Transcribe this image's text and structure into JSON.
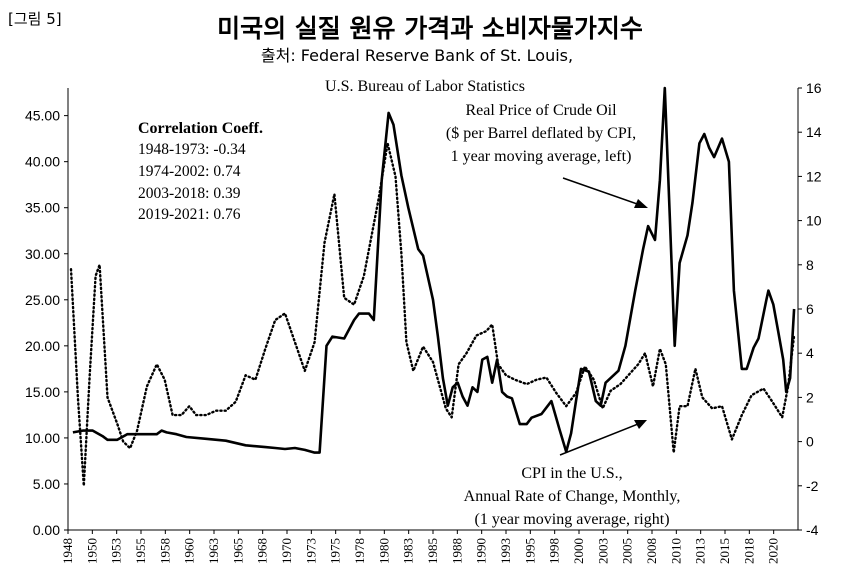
{
  "figure_label": "[그림 5]",
  "chart_data": {
    "type": "line",
    "title": "미국의 실질 원유 가격과 소비자물가지수",
    "source_lines": [
      "출처: Federal Reserve Bank of St. Louis,",
      "U.S. Bureau of Labor Statistics"
    ],
    "xlim": [
      1948,
      2022
    ],
    "x_tick_labels": [
      "1948",
      "1950",
      "1953",
      "1955",
      "1958",
      "1960",
      "1963",
      "1965",
      "1968",
      "1970",
      "1973",
      "1975",
      "1978",
      "1980",
      "1983",
      "1985",
      "1988",
      "1990",
      "1993",
      "1995",
      "1998",
      "2000",
      "2003",
      "2005",
      "2008",
      "2010",
      "2013",
      "2015",
      "2018",
      "2020"
    ],
    "left_axis": {
      "ylim": [
        0,
        48
      ],
      "tick_labels": [
        "0.00",
        "5.00",
        "10.00",
        "15.00",
        "20.00",
        "25.00",
        "30.00",
        "35.00",
        "40.00",
        "45.00"
      ]
    },
    "right_axis": {
      "ylim": [
        -4,
        16
      ],
      "tick_labels": [
        "-4",
        "-2",
        "0",
        "2",
        "4",
        "6",
        "8",
        "10",
        "12",
        "14",
        "16"
      ]
    },
    "correlation": {
      "title": "Correlation Coeff.",
      "lines": [
        "1948-1973: -0.34",
        "1974-2002: 0.74",
        "2003-2018: 0.39",
        "2019-2021: 0.76"
      ]
    },
    "series": [
      {
        "name": "Real Price of Crude Oil",
        "axis": "left",
        "style": "solid",
        "label_lines": [
          "Real Price of Crude Oil",
          "($ per Barrel deflated by CPI,",
          "1 year moving average,  left)"
        ],
        "points": [
          [
            1948.5,
            10.6
          ],
          [
            1949.5,
            10.8
          ],
          [
            1950.5,
            10.8
          ],
          [
            1951.5,
            10.2
          ],
          [
            1952,
            9.8
          ],
          [
            1953,
            9.8
          ],
          [
            1954,
            10.4
          ],
          [
            1955,
            10.4
          ],
          [
            1956,
            10.4
          ],
          [
            1957,
            10.4
          ],
          [
            1957.5,
            10.8
          ],
          [
            1958,
            10.6
          ],
          [
            1959,
            10.4
          ],
          [
            1960,
            10.1
          ],
          [
            1962,
            9.9
          ],
          [
            1964,
            9.7
          ],
          [
            1966,
            9.2
          ],
          [
            1968,
            9.0
          ],
          [
            1969,
            8.9
          ],
          [
            1970,
            8.8
          ],
          [
            1971,
            8.9
          ],
          [
            1972,
            8.7
          ],
          [
            1973,
            8.4
          ],
          [
            1973.5,
            8.4
          ],
          [
            1974.2,
            20.0
          ],
          [
            1974.8,
            21.0
          ],
          [
            1976,
            20.8
          ],
          [
            1977,
            22.8
          ],
          [
            1977.5,
            23.5
          ],
          [
            1978.5,
            23.5
          ],
          [
            1979,
            22.8
          ],
          [
            1979.8,
            38.0
          ],
          [
            1980.5,
            45.3
          ],
          [
            1981,
            44.0
          ],
          [
            1981.8,
            38.5
          ],
          [
            1982.5,
            35.0
          ],
          [
            1983.5,
            30.5
          ],
          [
            1984,
            29.8
          ],
          [
            1985,
            25.0
          ],
          [
            1985.5,
            21.0
          ],
          [
            1986,
            16.5
          ],
          [
            1986.5,
            13.5
          ],
          [
            1987,
            15.5
          ],
          [
            1987.5,
            16.0
          ],
          [
            1988,
            14.5
          ],
          [
            1988.5,
            13.5
          ],
          [
            1989,
            15.5
          ],
          [
            1989.5,
            15.0
          ],
          [
            1990,
            18.5
          ],
          [
            1990.5,
            18.8
          ],
          [
            1991,
            16.0
          ],
          [
            1991.5,
            18.5
          ],
          [
            1992,
            15.0
          ],
          [
            1992.5,
            14.5
          ],
          [
            1993,
            14.3
          ],
          [
            1993.8,
            11.5
          ],
          [
            1994.5,
            11.5
          ],
          [
            1995,
            12.2
          ],
          [
            1996,
            12.6
          ],
          [
            1997,
            14.0
          ],
          [
            1997.8,
            11.0
          ],
          [
            1998.5,
            8.5
          ],
          [
            1999,
            10.5
          ],
          [
            1999.5,
            14.0
          ],
          [
            2000,
            17.5
          ],
          [
            2000.8,
            17.2
          ],
          [
            2001.5,
            14.0
          ],
          [
            2002,
            13.5
          ],
          [
            2002.5,
            16.0
          ],
          [
            2003,
            16.5
          ],
          [
            2003.8,
            17.3
          ],
          [
            2004.5,
            20.0
          ],
          [
            2005.5,
            26.0
          ],
          [
            2006.3,
            30.5
          ],
          [
            2006.8,
            33.0
          ],
          [
            2007.5,
            31.5
          ],
          [
            2008,
            38.0
          ],
          [
            2008.5,
            48.0
          ],
          [
            2009,
            34.0
          ],
          [
            2009.5,
            20.0
          ],
          [
            2010,
            29.0
          ],
          [
            2010.8,
            32.0
          ],
          [
            2011.3,
            35.5
          ],
          [
            2012,
            42.0
          ],
          [
            2012.5,
            43.0
          ],
          [
            2013,
            41.5
          ],
          [
            2013.5,
            40.5
          ],
          [
            2014.3,
            42.5
          ],
          [
            2015,
            40.0
          ],
          [
            2015.5,
            26.0
          ],
          [
            2016.3,
            17.5
          ],
          [
            2016.8,
            17.5
          ],
          [
            2017.5,
            19.8
          ],
          [
            2018,
            20.8
          ],
          [
            2018.8,
            25.0
          ],
          [
            2019,
            26.0
          ],
          [
            2019.5,
            24.5
          ],
          [
            2020,
            21.5
          ],
          [
            2020.5,
            18.5
          ],
          [
            2020.8,
            15.0
          ],
          [
            2021.2,
            16.5
          ],
          [
            2021.6,
            24.0
          ]
        ]
      },
      {
        "name": "CPI in the U.S.",
        "axis": "right",
        "style": "dotted",
        "label_lines": [
          "CPI in the U.S.,",
          "Annual Rate of Change,  Monthly,",
          "(1 year moving average,  right)"
        ],
        "points": [
          [
            1948.3,
            7.8
          ],
          [
            1949,
            2.0
          ],
          [
            1949.6,
            -2.0
          ],
          [
            1950.2,
            3.0
          ],
          [
            1950.8,
            7.5
          ],
          [
            1951.2,
            8.0
          ],
          [
            1952,
            2.0
          ],
          [
            1953,
            0.8
          ],
          [
            1953.6,
            0.0
          ],
          [
            1954.3,
            -0.3
          ],
          [
            1955,
            0.5
          ],
          [
            1956,
            2.5
          ],
          [
            1957,
            3.5
          ],
          [
            1957.8,
            2.8
          ],
          [
            1958.6,
            1.2
          ],
          [
            1959.5,
            1.2
          ],
          [
            1960.3,
            1.6
          ],
          [
            1961,
            1.2
          ],
          [
            1962,
            1.2
          ],
          [
            1963,
            1.4
          ],
          [
            1964,
            1.4
          ],
          [
            1965,
            1.8
          ],
          [
            1966,
            3.0
          ],
          [
            1967,
            2.8
          ],
          [
            1968,
            4.2
          ],
          [
            1969,
            5.5
          ],
          [
            1970,
            5.8
          ],
          [
            1971,
            4.5
          ],
          [
            1972,
            3.2
          ],
          [
            1973,
            4.5
          ],
          [
            1974,
            9.0
          ],
          [
            1975,
            11.2
          ],
          [
            1976,
            6.5
          ],
          [
            1977,
            6.2
          ],
          [
            1978,
            7.5
          ],
          [
            1979.5,
            11.0
          ],
          [
            1980.4,
            13.5
          ],
          [
            1981.2,
            12.0
          ],
          [
            1981.8,
            8.5
          ],
          [
            1982.3,
            4.5
          ],
          [
            1983,
            3.2
          ],
          [
            1984,
            4.3
          ],
          [
            1985,
            3.6
          ],
          [
            1986.3,
            1.5
          ],
          [
            1986.9,
            1.1
          ],
          [
            1987.6,
            3.5
          ],
          [
            1988.4,
            4.0
          ],
          [
            1989.4,
            4.8
          ],
          [
            1990.4,
            5.0
          ],
          [
            1991,
            5.3
          ],
          [
            1991.6,
            3.5
          ],
          [
            1992.4,
            3.0
          ],
          [
            1993.3,
            2.8
          ],
          [
            1994.5,
            2.6
          ],
          [
            1995.5,
            2.8
          ],
          [
            1996.5,
            2.9
          ],
          [
            1997.5,
            2.2
          ],
          [
            1998.5,
            1.6
          ],
          [
            1999.5,
            2.2
          ],
          [
            2000.4,
            3.4
          ],
          [
            2001.3,
            2.8
          ],
          [
            2002.2,
            1.5
          ],
          [
            2003,
            2.3
          ],
          [
            2004,
            2.6
          ],
          [
            2004.8,
            3.0
          ],
          [
            2005.8,
            3.5
          ],
          [
            2006.5,
            4.0
          ],
          [
            2007.3,
            2.5
          ],
          [
            2008,
            4.2
          ],
          [
            2008.6,
            3.5
          ],
          [
            2009.4,
            -0.5
          ],
          [
            2010,
            1.6
          ],
          [
            2010.8,
            1.6
          ],
          [
            2011.6,
            3.3
          ],
          [
            2012.3,
            2.0
          ],
          [
            2013.3,
            1.5
          ],
          [
            2014.3,
            1.6
          ],
          [
            2015.3,
            0.1
          ],
          [
            2016.3,
            1.2
          ],
          [
            2017.3,
            2.1
          ],
          [
            2018.5,
            2.4
          ],
          [
            2019.4,
            1.8
          ],
          [
            2020.4,
            1.1
          ],
          [
            2021,
            2.5
          ],
          [
            2021.6,
            4.8
          ]
        ]
      }
    ]
  }
}
